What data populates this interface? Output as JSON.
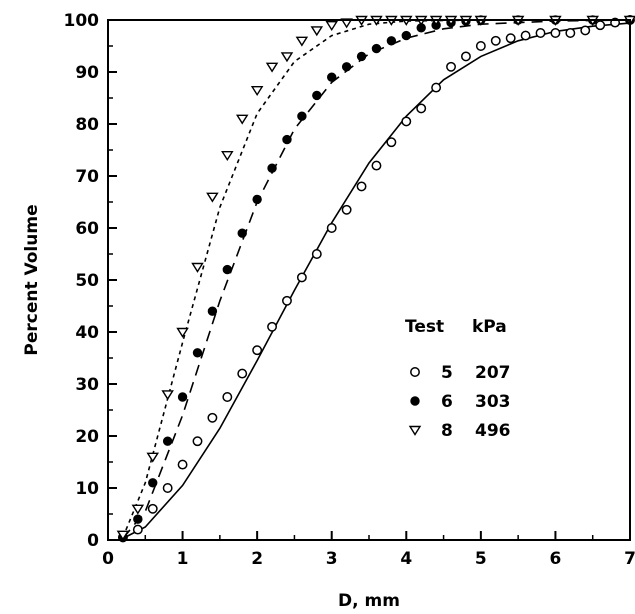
{
  "chart_data": {
    "type": "scatter",
    "xlabel": "D, mm",
    "ylabel": "Percent Volume",
    "xlim": [
      0,
      7
    ],
    "ylim": [
      0,
      100
    ],
    "xticks": [
      "0",
      "1",
      "2",
      "3",
      "4",
      "5",
      "6",
      "7"
    ],
    "yticks": [
      "0",
      "10",
      "20",
      "30",
      "40",
      "50",
      "60",
      "70",
      "80",
      "90",
      "100"
    ],
    "grid": false,
    "legend": {
      "placement": "center-right",
      "header": [
        "Test",
        "kPa"
      ],
      "entries": [
        {
          "test": "5",
          "kpa": "207",
          "marker": "open-circle"
        },
        {
          "test": "6",
          "kpa": "303",
          "marker": "filled-circle"
        },
        {
          "test": "8",
          "kpa": "496",
          "marker": "open-triangle-down"
        }
      ]
    },
    "series": [
      {
        "test": "5",
        "marker": "open-circle",
        "line_style": "solid",
        "points": [
          [
            0.2,
            0.5
          ],
          [
            0.4,
            2
          ],
          [
            0.6,
            6
          ],
          [
            0.8,
            10
          ],
          [
            1.0,
            14.5
          ],
          [
            1.2,
            19
          ],
          [
            1.4,
            23.5
          ],
          [
            1.6,
            27.5
          ],
          [
            1.8,
            32
          ],
          [
            2.0,
            36.5
          ],
          [
            2.2,
            41
          ],
          [
            2.4,
            46
          ],
          [
            2.6,
            50.5
          ],
          [
            2.8,
            55
          ],
          [
            3.0,
            60
          ],
          [
            3.2,
            63.5
          ],
          [
            3.4,
            68
          ],
          [
            3.6,
            72
          ],
          [
            3.8,
            76.5
          ],
          [
            4.0,
            80.5
          ],
          [
            4.2,
            83
          ],
          [
            4.4,
            87
          ],
          [
            4.6,
            91
          ],
          [
            4.8,
            93
          ],
          [
            5.0,
            95
          ],
          [
            5.2,
            96
          ],
          [
            5.4,
            96.5
          ],
          [
            5.6,
            97
          ],
          [
            5.8,
            97.5
          ],
          [
            6.0,
            97.5
          ],
          [
            6.2,
            97.5
          ],
          [
            6.4,
            98
          ],
          [
            6.6,
            99
          ],
          [
            6.8,
            99.5
          ],
          [
            7.0,
            100
          ]
        ],
        "curve": [
          [
            0.2,
            0.3
          ],
          [
            0.5,
            2.5
          ],
          [
            1.0,
            10.5
          ],
          [
            1.5,
            21.5
          ],
          [
            2.0,
            34.5
          ],
          [
            2.5,
            48
          ],
          [
            3.0,
            61
          ],
          [
            3.5,
            72.5
          ],
          [
            4.0,
            81.5
          ],
          [
            4.5,
            88.5
          ],
          [
            5.0,
            93
          ],
          [
            5.5,
            96
          ],
          [
            6.0,
            97.8
          ],
          [
            6.5,
            98.8
          ],
          [
            7.0,
            99.4
          ]
        ]
      },
      {
        "test": "6",
        "marker": "filled-circle",
        "line_style": "dashed",
        "points": [
          [
            0.2,
            0.5
          ],
          [
            0.4,
            4
          ],
          [
            0.6,
            11
          ],
          [
            0.8,
            19
          ],
          [
            1.0,
            27.5
          ],
          [
            1.2,
            36
          ],
          [
            1.4,
            44
          ],
          [
            1.6,
            52
          ],
          [
            1.8,
            59
          ],
          [
            2.0,
            65.5
          ],
          [
            2.2,
            71.5
          ],
          [
            2.4,
            77
          ],
          [
            2.6,
            81.5
          ],
          [
            2.8,
            85.5
          ],
          [
            3.0,
            89
          ],
          [
            3.2,
            91
          ],
          [
            3.4,
            93
          ],
          [
            3.6,
            94.5
          ],
          [
            3.8,
            96
          ],
          [
            4.0,
            97
          ],
          [
            4.2,
            98.5
          ],
          [
            4.4,
            99
          ],
          [
            4.6,
            99.5
          ],
          [
            4.8,
            99.8
          ],
          [
            5.0,
            100
          ],
          [
            5.5,
            100
          ],
          [
            6.0,
            100
          ],
          [
            6.5,
            100
          ],
          [
            7.0,
            100
          ]
        ],
        "curve": [
          [
            0.2,
            0.3
          ],
          [
            0.5,
            5.5
          ],
          [
            1.0,
            24
          ],
          [
            1.5,
            46
          ],
          [
            2.0,
            65
          ],
          [
            2.5,
            79
          ],
          [
            3.0,
            88
          ],
          [
            3.5,
            93.5
          ],
          [
            4.0,
            96.5
          ],
          [
            4.5,
            98.3
          ],
          [
            5.0,
            99.2
          ],
          [
            6.0,
            99.8
          ],
          [
            7.0,
            100
          ]
        ]
      },
      {
        "test": "8",
        "marker": "open-triangle-down",
        "line_style": "dotted",
        "points": [
          [
            0.2,
            1
          ],
          [
            0.4,
            6
          ],
          [
            0.6,
            16
          ],
          [
            0.8,
            28
          ],
          [
            1.0,
            40
          ],
          [
            1.2,
            52.5
          ],
          [
            1.4,
            66
          ],
          [
            1.6,
            74
          ],
          [
            1.8,
            81
          ],
          [
            2.0,
            86.5
          ],
          [
            2.2,
            91
          ],
          [
            2.4,
            93
          ],
          [
            2.6,
            96
          ],
          [
            2.8,
            98
          ],
          [
            3.0,
            99
          ],
          [
            3.2,
            99.5
          ],
          [
            3.4,
            100
          ],
          [
            3.6,
            100
          ],
          [
            3.8,
            100
          ],
          [
            4.0,
            100
          ],
          [
            4.2,
            100
          ],
          [
            4.4,
            100
          ],
          [
            4.6,
            100
          ],
          [
            4.8,
            100
          ],
          [
            5.0,
            100
          ],
          [
            5.5,
            100
          ],
          [
            6.0,
            100
          ],
          [
            6.5,
            100
          ],
          [
            7.0,
            100
          ]
        ],
        "curve": [
          [
            0.2,
            0.5
          ],
          [
            0.5,
            11
          ],
          [
            1.0,
            38
          ],
          [
            1.5,
            64
          ],
          [
            2.0,
            82
          ],
          [
            2.5,
            92
          ],
          [
            3.0,
            97
          ],
          [
            3.5,
            99.2
          ],
          [
            4.0,
            99.8
          ],
          [
            5.0,
            100
          ],
          [
            7.0,
            100
          ]
        ]
      }
    ]
  }
}
